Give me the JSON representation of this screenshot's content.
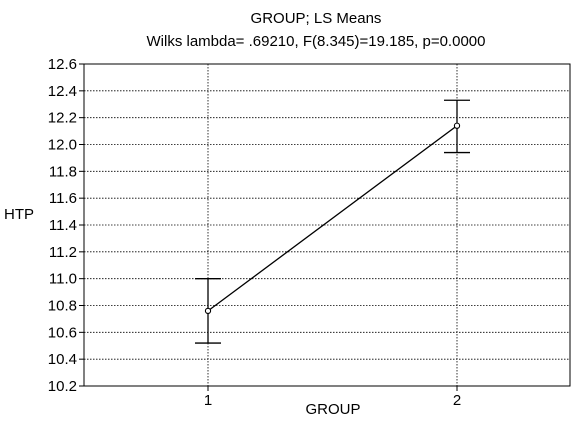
{
  "chart_data": {
    "type": "line",
    "title": "GROUP;  LS Means",
    "subtitle": "Wilks lambda= .69210, F(8.345)=19.185, p=0.0000",
    "xlabel": "GROUP",
    "ylabel": "HTP",
    "categories": [
      "1",
      "2"
    ],
    "series": [
      {
        "values": [
          10.76,
          12.14
        ],
        "error_low": [
          10.52,
          11.94
        ],
        "error_high": [
          11.0,
          12.33
        ]
      }
    ],
    "ylim": [
      10.2,
      12.6
    ],
    "yticks": [
      "10.2",
      "10.4",
      "10.6",
      "10.8",
      "11.0",
      "11.2",
      "11.4",
      "11.6",
      "11.8",
      "12.0",
      "12.2",
      "12.4",
      "12.6"
    ],
    "grid": true,
    "legend": "none"
  }
}
